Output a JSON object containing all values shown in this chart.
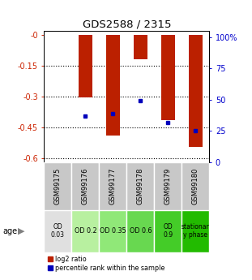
{
  "title": "GDS2588 / 2315",
  "samples": [
    "GSM99175",
    "GSM99176",
    "GSM99177",
    "GSM99178",
    "GSM99179",
    "GSM99180"
  ],
  "log2_ratio": [
    0.0,
    -0.305,
    -0.49,
    -0.12,
    -0.415,
    -0.545
  ],
  "percentile_rank": [
    null,
    0.37,
    0.39,
    0.49,
    0.32,
    0.25
  ],
  "ylim_left": [
    -0.62,
    0.02
  ],
  "ylim_right": [
    0,
    105
  ],
  "yticks_left": [
    0,
    -0.15,
    -0.3,
    -0.45,
    -0.6
  ],
  "yticks_left_labels": [
    "-0",
    "-0.15",
    "-0.3",
    "-0.45",
    "-0.6"
  ],
  "yticks_right": [
    0,
    25,
    50,
    75,
    100
  ],
  "yticks_right_labels": [
    "0",
    "25",
    "50",
    "75",
    "100%"
  ],
  "bar_color": "#bb2000",
  "dot_color": "#0000bb",
  "age_labels": [
    "OD\n0.03",
    "OD 0.2",
    "OD 0.35",
    "OD 0.6",
    "OD\n0.9",
    "stationar\ny phase"
  ],
  "age_bg_colors": [
    "#e0e0e0",
    "#b8f0a0",
    "#90e878",
    "#68d850",
    "#44cc28",
    "#22bb00"
  ],
  "sample_bg_color": "#c8c8c8",
  "left_axis_color": "#cc2200",
  "right_axis_color": "#0000cc",
  "bar_width": 0.5
}
